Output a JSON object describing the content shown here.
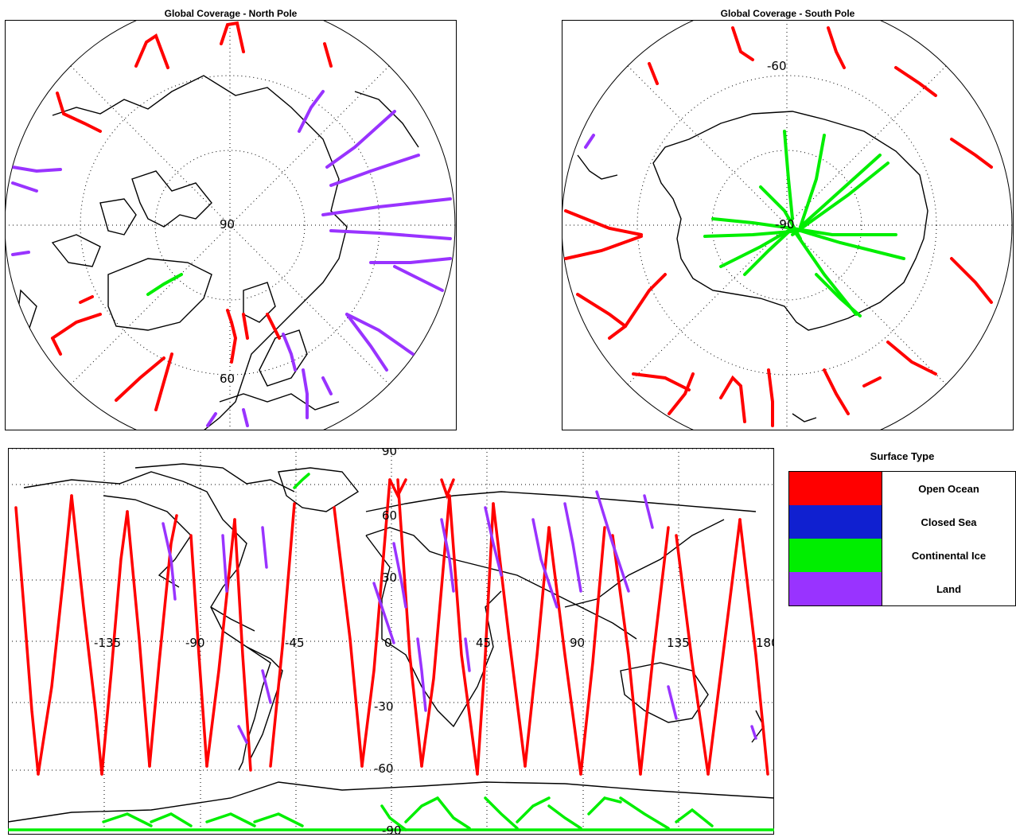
{
  "panels": {
    "north_title": "Global Coverage - North Pole",
    "south_title": "Global Coverage - South Pole"
  },
  "north_labels": {
    "center": "90",
    "lat": "60"
  },
  "south_labels": {
    "center": "-90",
    "lat": "-60"
  },
  "world_labels": {
    "lat_top": "90",
    "lat_60": "60",
    "lat_30": "30",
    "lat_m30": "-30",
    "lat_m60": "-60",
    "lat_bottom": "-90",
    "lon_m135": "-135",
    "lon_m90": "-90",
    "lon_m45": "-45",
    "lon_0": "0",
    "lon_45": "45",
    "lon_90": "90",
    "lon_135": "135",
    "lon_180": "180"
  },
  "legend": {
    "title": "Surface Type",
    "items": [
      {
        "label": "Open Ocean",
        "color": "#ff0000"
      },
      {
        "label": "Closed Sea",
        "color": "#1020d0"
      },
      {
        "label": "Continental Ice",
        "color": "#00ee00"
      },
      {
        "label": "Land",
        "color": "#9933ff"
      }
    ]
  }
}
